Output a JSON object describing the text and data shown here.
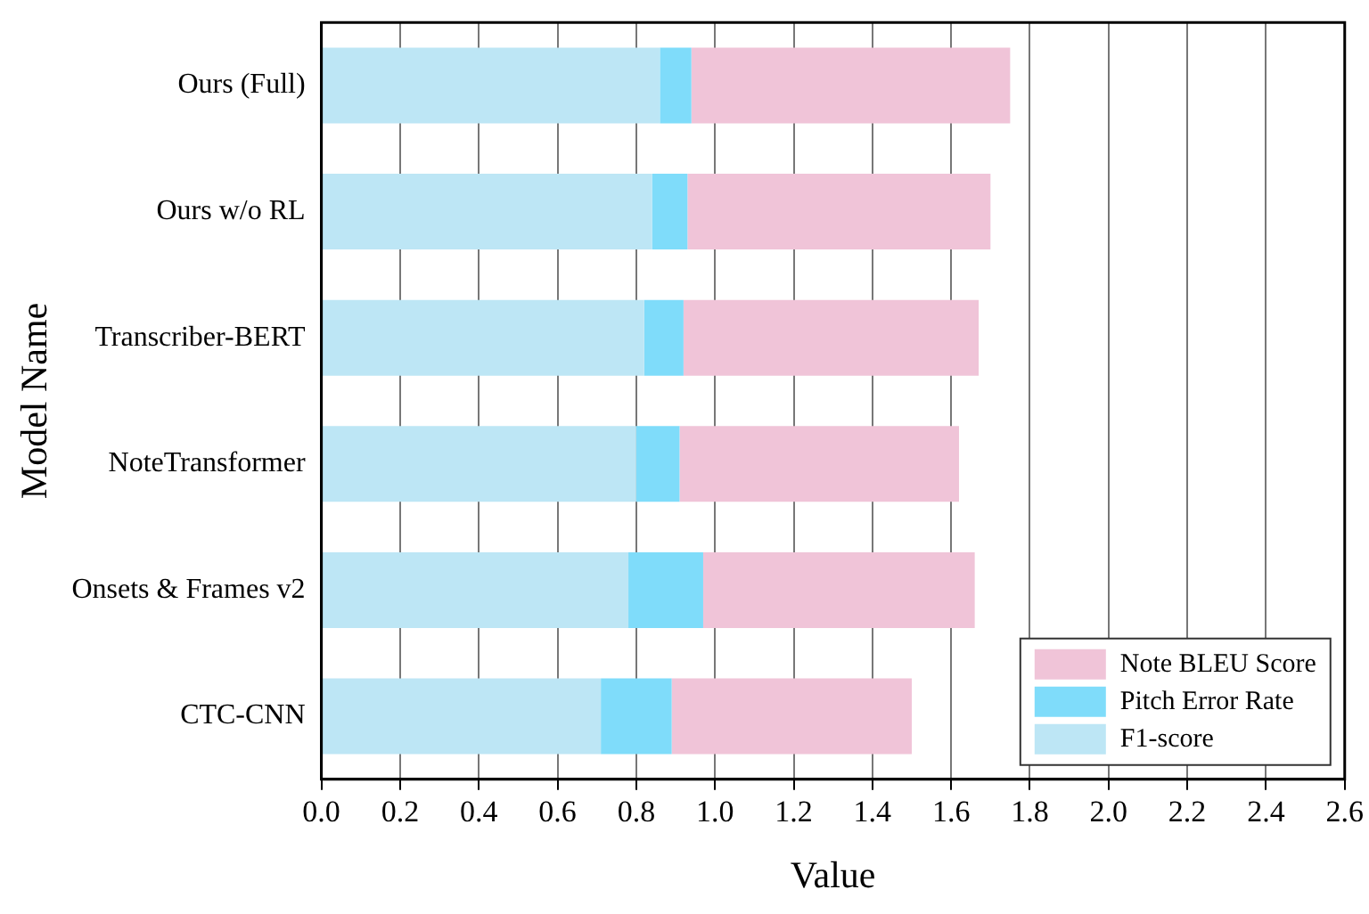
{
  "chart_data": {
    "type": "bar",
    "orientation": "horizontal",
    "stacked": true,
    "xlabel": "Value",
    "ylabel": "Model Name",
    "categories": [
      "Ours (Full)",
      "Ours w/o RL",
      "Transcriber-BERT",
      "NoteTransformer",
      "Onsets & Frames v2",
      "CTC-CNN"
    ],
    "series": [
      {
        "name": "F1-score",
        "color": "#bde6f5",
        "values": [
          0.86,
          0.84,
          0.82,
          0.8,
          0.78,
          0.71
        ]
      },
      {
        "name": "Pitch Error Rate",
        "color": "#7fdcfa",
        "values": [
          0.08,
          0.09,
          0.1,
          0.11,
          0.19,
          0.18
        ]
      },
      {
        "name": "Note BLEU Score",
        "color": "#f0c4d8",
        "values": [
          0.81,
          0.77,
          0.75,
          0.71,
          0.69,
          0.61
        ]
      }
    ],
    "xlim": [
      0,
      2.6
    ],
    "xticks": [
      {
        "value": 0,
        "label": "0.0"
      },
      {
        "value": 0.2,
        "label": "0.2"
      },
      {
        "value": 0.4,
        "label": "0.4"
      },
      {
        "value": 0.6,
        "label": "0.6"
      },
      {
        "value": 0.8,
        "label": "0.8"
      },
      {
        "value": 1,
        "label": "1.0"
      },
      {
        "value": 1.2,
        "label": "1.2"
      },
      {
        "value": 1.4,
        "label": "1.4"
      },
      {
        "value": 1.6,
        "label": "1.6"
      },
      {
        "value": 1.8,
        "label": "1.8"
      },
      {
        "value": 2,
        "label": "2.0"
      },
      {
        "value": 2.2,
        "label": "2.2"
      },
      {
        "value": 2.4,
        "label": "2.4"
      },
      {
        "value": 2.6,
        "label": "2.6"
      }
    ],
    "grid": "x",
    "legend": "bottom right"
  }
}
